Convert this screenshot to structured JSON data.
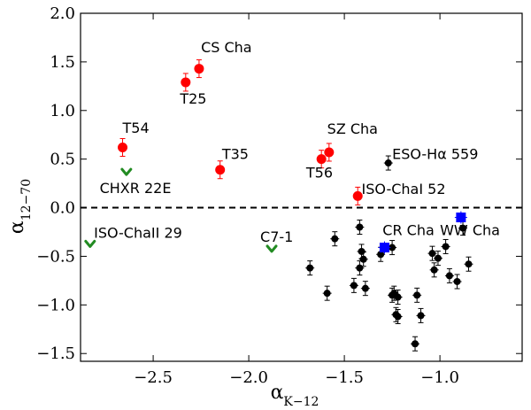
{
  "chart_data": {
    "type": "scatter",
    "xlabel": {
      "base": "α",
      "sub": "K−12"
    },
    "ylabel": {
      "base": "α",
      "sub": "12−70"
    },
    "xlim": [
      -2.88,
      -0.57
    ],
    "ylim": [
      -1.58,
      2.0
    ],
    "x_ticks": [
      -2.5,
      -2.0,
      -1.5,
      -1.0
    ],
    "x_tick_labels": [
      "−2.5",
      "−2.0",
      "−1.5",
      "−1.0"
    ],
    "y_ticks": [
      -1.5,
      -1.0,
      -0.5,
      0.0,
      0.5,
      1.0,
      1.5,
      2.0
    ],
    "y_tick_labels": [
      "−1.5",
      "−1.0",
      "−0.5",
      "0.0",
      "0.5",
      "1.0",
      "1.5",
      "2.0"
    ],
    "reference_line": {
      "y": 0.0,
      "style": "dashed"
    },
    "colors": {
      "red": "#ff0000",
      "blue": "#0000ff",
      "green": "#228b22",
      "black": "#000000",
      "errorbar_red": "#ff0000"
    },
    "series": [
      {
        "marker": "circle",
        "color": "#000000",
        "points": [
          [
            -1.27,
            0.46
          ],
          [
            -1.42,
            -0.2
          ],
          [
            -1.55,
            -0.32
          ],
          [
            -1.41,
            -0.45
          ],
          [
            -1.4,
            -0.53
          ],
          [
            -1.42,
            -0.62
          ],
          [
            -1.31,
            -0.48
          ],
          [
            -1.25,
            -0.41
          ],
          [
            -1.68,
            -0.62
          ],
          [
            -1.59,
            -0.88
          ],
          [
            -1.45,
            -0.8
          ],
          [
            -1.39,
            -0.83
          ],
          [
            -1.25,
            -0.9
          ],
          [
            -1.24,
            -0.88
          ],
          [
            -1.22,
            -0.92
          ],
          [
            -1.22,
            -1.12
          ],
          [
            -1.23,
            -1.1
          ],
          [
            -1.12,
            -0.9
          ],
          [
            -1.1,
            -1.11
          ],
          [
            -1.13,
            -1.4
          ],
          [
            -1.04,
            -0.47
          ],
          [
            -1.01,
            -0.52
          ],
          [
            -0.97,
            -0.4
          ],
          [
            -1.03,
            -0.64
          ],
          [
            -0.95,
            -0.7
          ],
          [
            -0.91,
            -0.76
          ],
          [
            -0.88,
            -0.21
          ],
          [
            -0.85,
            -0.58
          ]
        ]
      },
      {
        "marker": "circle",
        "color": "#ff0000",
        "points": [
          [
            -2.66,
            0.62
          ],
          [
            -2.33,
            1.29
          ],
          [
            -2.26,
            1.43
          ],
          [
            -2.15,
            0.39
          ],
          [
            -1.62,
            0.5
          ],
          [
            -1.58,
            0.57
          ],
          [
            -1.43,
            0.12
          ]
        ]
      },
      {
        "marker": "square",
        "color": "#0000ff",
        "points": [
          [
            -1.29,
            -0.41
          ],
          [
            -0.89,
            -0.1
          ]
        ]
      },
      {
        "marker": "upper-limit",
        "color": "#228b22",
        "points": [
          [
            -2.64,
            0.35
          ],
          [
            -2.83,
            -0.39
          ],
          [
            -1.88,
            -0.44
          ]
        ]
      }
    ],
    "annotations": [
      {
        "text": "CS Cha",
        "x": -2.25,
        "y": 1.6
      },
      {
        "text": "T25",
        "x": -2.36,
        "y": 1.07
      },
      {
        "text": "T54",
        "x": -2.66,
        "y": 0.77
      },
      {
        "text": "T35",
        "x": -2.14,
        "y": 0.5
      },
      {
        "text": "SZ Cha",
        "x": -1.59,
        "y": 0.76
      },
      {
        "text": "T56",
        "x": -1.7,
        "y": 0.31
      },
      {
        "text": "ESO-Hα 559",
        "x": -1.25,
        "y": 0.5
      },
      {
        "text": "CHXR 22E",
        "x": -2.78,
        "y": 0.15
      },
      {
        "text": "ISO-ChaI 52",
        "x": -1.41,
        "y": 0.14
      },
      {
        "text": "ISO-ChaII 29",
        "x": -2.81,
        "y": -0.31
      },
      {
        "text": "C7-1",
        "x": -1.94,
        "y": -0.35
      },
      {
        "text": "CR Cha",
        "x": -1.3,
        "y": -0.28
      },
      {
        "text": "WW Cha",
        "x": -1.0,
        "y": -0.28
      }
    ]
  }
}
